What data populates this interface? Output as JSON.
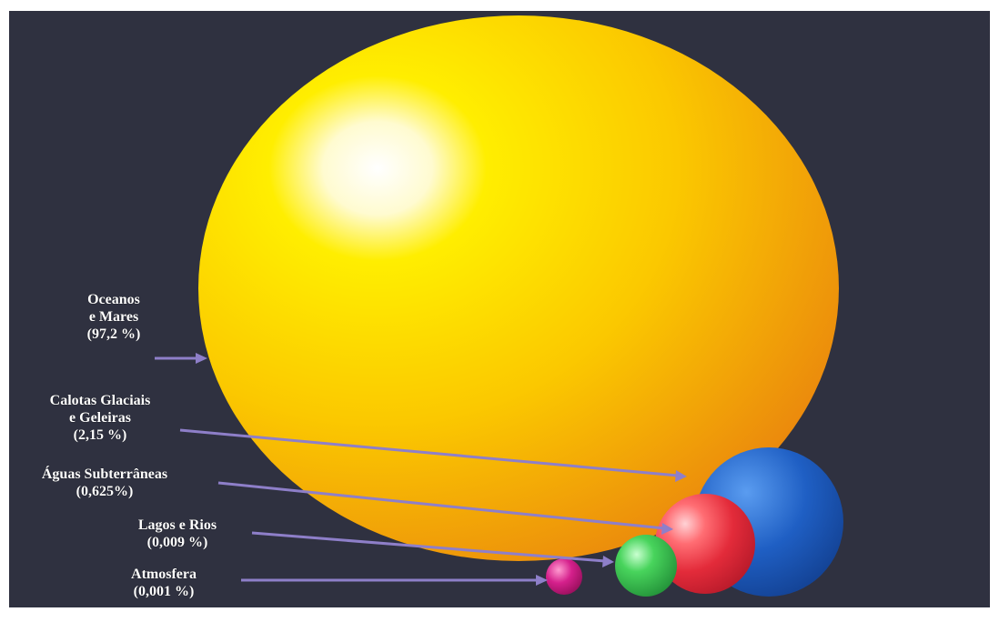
{
  "colors": {
    "background": "#2f3140",
    "oceans": "#f5b800",
    "ice": "#1f5fc4",
    "groundwater": "#e32b3a",
    "lakes": "#2fb84a",
    "atmosphere": "#c0157a",
    "arrow": "#8e7fc9",
    "label_text": "#ffffff"
  },
  "reservoirs": [
    {
      "id": "oceans",
      "lines": [
        "Oceanos",
        "e Mares",
        "(97,2 %)"
      ],
      "percent": 97.2
    },
    {
      "id": "ice",
      "lines": [
        "Calotas Glaciais",
        "e Geleiras",
        "(2,15 %)"
      ],
      "percent": 2.15
    },
    {
      "id": "groundwater",
      "lines": [
        "Águas Subterrâneas",
        "(0,625%)"
      ],
      "percent": 0.625
    },
    {
      "id": "lakes",
      "lines": [
        "Lagos e Rios",
        "(0,009 %)"
      ],
      "percent": 0.009
    },
    {
      "id": "atmosphere",
      "lines": [
        "Atmosfera",
        "(0,001 %)"
      ],
      "percent": 0.001
    }
  ]
}
